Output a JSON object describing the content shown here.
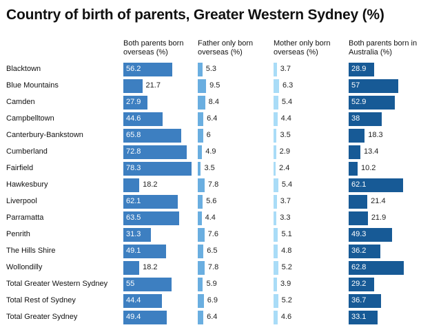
{
  "title": "Country of birth of parents, Greater Western Sydney (%)",
  "chart_data": {
    "type": "bar",
    "title": "Country of birth of parents, Greater Western Sydney (%)",
    "categories": [
      "Blacktown",
      "Blue Mountains",
      "Camden",
      "Campbelltown",
      "Canterbury-Bankstown",
      "Cumberland",
      "Fairfield",
      "Hawkesbury",
      "Liverpool",
      "Parramatta",
      "Penrith",
      "The Hills Shire",
      "Wollondilly",
      "Total Greater Western Sydney",
      "Total Rest of Sydney",
      "Total Greater Sydney"
    ],
    "series": [
      {
        "name": "Both parents born overseas (%)",
        "color": "#3d7fc1",
        "text_mode": "inside-if-fits",
        "values": [
          56.2,
          21.7,
          27.9,
          44.6,
          65.8,
          72.8,
          78.3,
          18.2,
          62.1,
          63.5,
          31.3,
          49.1,
          18.2,
          55,
          44.4,
          49.4
        ]
      },
      {
        "name": "Father only born overseas (%)",
        "color": "#6aaee0",
        "text_mode": "outside",
        "values": [
          5.3,
          9.5,
          8.4,
          6.4,
          6,
          4.9,
          3.5,
          7.8,
          5.6,
          4.4,
          7.6,
          6.5,
          7.8,
          5.9,
          6.9,
          6.4
        ]
      },
      {
        "name": "Mother only born overseas (%)",
        "color": "#a9dcf7",
        "text_mode": "outside",
        "values": [
          3.7,
          6.3,
          5.4,
          4.4,
          3.5,
          2.9,
          2.4,
          5.4,
          3.7,
          3.3,
          5.1,
          4.8,
          5.2,
          3.9,
          5.2,
          4.6
        ]
      },
      {
        "name": "Both parents born in Australia (%)",
        "color": "#175a96",
        "text_mode": "inside-if-fits",
        "values": [
          28.9,
          57,
          52.9,
          38,
          18.3,
          13.4,
          10.2,
          62.1,
          21.4,
          21.9,
          49.3,
          36.2,
          62.8,
          29.2,
          36.7,
          33.1
        ]
      }
    ],
    "grid": false,
    "legend": "column headers"
  }
}
